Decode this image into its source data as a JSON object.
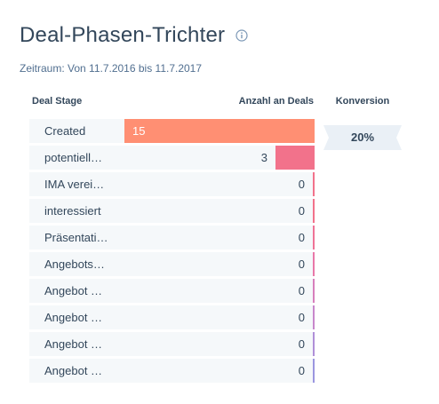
{
  "header": {
    "title": "Deal-Phasen-Trichter",
    "info_icon": "info-icon",
    "period": "Zeitraum: Von 11.7.2016 bis 11.7.2017"
  },
  "columns": {
    "stage": "Deal Stage",
    "count": "Anzahl an Deals",
    "conversion": "Konversion"
  },
  "chart_data": {
    "type": "bar",
    "orientation": "horizontal",
    "xlabel": "Anzahl an Deals",
    "ylabel": "Deal Stage",
    "categories": [
      "Created",
      "potentiell…",
      "IMA verei…",
      "interessiert",
      "Präsentati…",
      "Angebots…",
      "Angebot …",
      "Angebot …",
      "Angebot …",
      "Angebot …"
    ],
    "values": [
      15,
      3,
      0,
      0,
      0,
      0,
      0,
      0,
      0,
      0
    ],
    "bar_colors": [
      "#ff8f73",
      "#f2728b",
      "#f2728b",
      "#f2728b",
      "#ef7397",
      "#e978a8",
      "#d77fbc",
      "#c887cc",
      "#b08fd8",
      "#9b96e0"
    ],
    "conversions": [
      "20%"
    ],
    "xlim": [
      0,
      15
    ]
  }
}
